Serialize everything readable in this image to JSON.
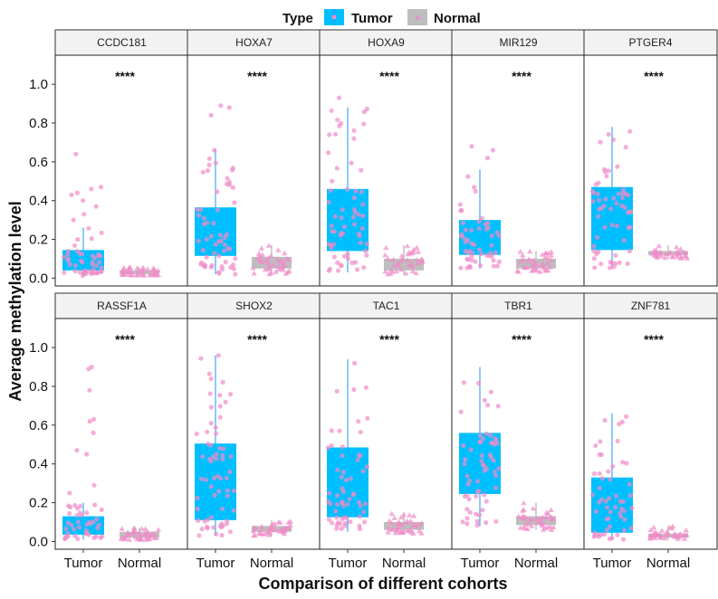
{
  "chart_data": {
    "type": "box",
    "legend": {
      "title": "Type",
      "position": "top",
      "entries": [
        {
          "name": "Tumor",
          "color": "#00BFFF"
        },
        {
          "name": "Normal",
          "color": "#BEBEBE"
        }
      ]
    },
    "xlabel": "Comparison of different cohorts",
    "ylabel": "Average methylation level",
    "categories": [
      "Tumor",
      "Normal"
    ],
    "yticks": [
      "0.0",
      "0.2",
      "0.4",
      "0.6",
      "0.8",
      "1.0"
    ],
    "ylim": [
      -0.04,
      1.15
    ],
    "point_color": "#F08CC8",
    "panels": [
      {
        "name": "CCDC181",
        "sig": "****",
        "tumor": {
          "lo": 0.01,
          "q1": 0.04,
          "median": 0.07,
          "q3": 0.145,
          "hi": 0.26,
          "n": 55,
          "outliers": [
            0.64,
            0.47,
            0.46,
            0.44,
            0.43,
            0.4,
            0.37,
            0.33,
            0.3
          ]
        },
        "normal": {
          "lo": 0.015,
          "q1": 0.02,
          "median": 0.03,
          "q3": 0.04,
          "hi": 0.055,
          "n": 40,
          "outliers": []
        }
      },
      {
        "name": "HOXA7",
        "sig": "****",
        "tumor": {
          "lo": 0.02,
          "q1": 0.115,
          "median": 0.2,
          "q3": 0.365,
          "hi": 0.67,
          "n": 60,
          "outliers": [
            0.89,
            0.88,
            0.84
          ]
        },
        "normal": {
          "lo": 0.02,
          "q1": 0.05,
          "median": 0.08,
          "q3": 0.11,
          "hi": 0.17,
          "n": 40,
          "outliers": []
        }
      },
      {
        "name": "HOXA9",
        "sig": "****",
        "tumor": {
          "lo": 0.03,
          "q1": 0.14,
          "median": 0.3,
          "q3": 0.46,
          "hi": 0.88,
          "n": 65,
          "outliers": [
            0.93
          ]
        },
        "normal": {
          "lo": 0.02,
          "q1": 0.04,
          "median": 0.07,
          "q3": 0.1,
          "hi": 0.17,
          "n": 40,
          "outliers": []
        }
      },
      {
        "name": "MIR129",
        "sig": "****",
        "tumor": {
          "lo": 0.05,
          "q1": 0.12,
          "median": 0.18,
          "q3": 0.3,
          "hi": 0.56,
          "n": 55,
          "outliers": [
            0.68,
            0.66,
            0.62
          ]
        },
        "normal": {
          "lo": 0.03,
          "q1": 0.05,
          "median": 0.07,
          "q3": 0.1,
          "hi": 0.14,
          "n": 40,
          "outliers": []
        }
      },
      {
        "name": "PTGER4",
        "sig": "****",
        "tumor": {
          "lo": 0.05,
          "q1": 0.145,
          "median": 0.28,
          "q3": 0.47,
          "hi": 0.78,
          "n": 60,
          "outliers": []
        },
        "normal": {
          "lo": 0.1,
          "q1": 0.12,
          "median": 0.13,
          "q3": 0.14,
          "hi": 0.17,
          "n": 35,
          "outliers": []
        }
      },
      {
        "name": "RASSF1A",
        "sig": "****",
        "tumor": {
          "lo": 0.01,
          "q1": 0.035,
          "median": 0.06,
          "q3": 0.13,
          "hi": 0.2,
          "n": 50,
          "outliers": [
            0.9,
            0.89,
            0.78,
            0.63,
            0.62,
            0.56,
            0.47,
            0.45,
            0.29,
            0.25
          ]
        },
        "normal": {
          "lo": 0.01,
          "q1": 0.02,
          "median": 0.03,
          "q3": 0.05,
          "hi": 0.07,
          "n": 40,
          "outliers": []
        }
      },
      {
        "name": "SHOX2",
        "sig": "****",
        "tumor": {
          "lo": 0.03,
          "q1": 0.11,
          "median": 0.31,
          "q3": 0.505,
          "hi": 0.96,
          "n": 65,
          "outliers": []
        },
        "normal": {
          "lo": 0.03,
          "q1": 0.05,
          "median": 0.06,
          "q3": 0.08,
          "hi": 0.11,
          "n": 40,
          "outliers": []
        }
      },
      {
        "name": "TAC1",
        "sig": "****",
        "tumor": {
          "lo": 0.05,
          "q1": 0.125,
          "median": 0.28,
          "q3": 0.485,
          "hi": 0.94,
          "n": 60,
          "outliers": []
        },
        "normal": {
          "lo": 0.04,
          "q1": 0.06,
          "median": 0.08,
          "q3": 0.1,
          "hi": 0.15,
          "n": 40,
          "outliers": []
        }
      },
      {
        "name": "TBR1",
        "sig": "****",
        "tumor": {
          "lo": 0.08,
          "q1": 0.245,
          "median": 0.38,
          "q3": 0.56,
          "hi": 0.9,
          "n": 60,
          "outliers": []
        },
        "normal": {
          "lo": 0.06,
          "q1": 0.085,
          "median": 0.11,
          "q3": 0.13,
          "hi": 0.2,
          "n": 40,
          "outliers": []
        }
      },
      {
        "name": "ZNF781",
        "sig": "****",
        "tumor": {
          "lo": 0.01,
          "q1": 0.045,
          "median": 0.13,
          "q3": 0.33,
          "hi": 0.66,
          "n": 55,
          "outliers": []
        },
        "normal": {
          "lo": 0.01,
          "q1": 0.02,
          "median": 0.03,
          "q3": 0.04,
          "hi": 0.08,
          "n": 40,
          "outliers": []
        }
      }
    ]
  }
}
